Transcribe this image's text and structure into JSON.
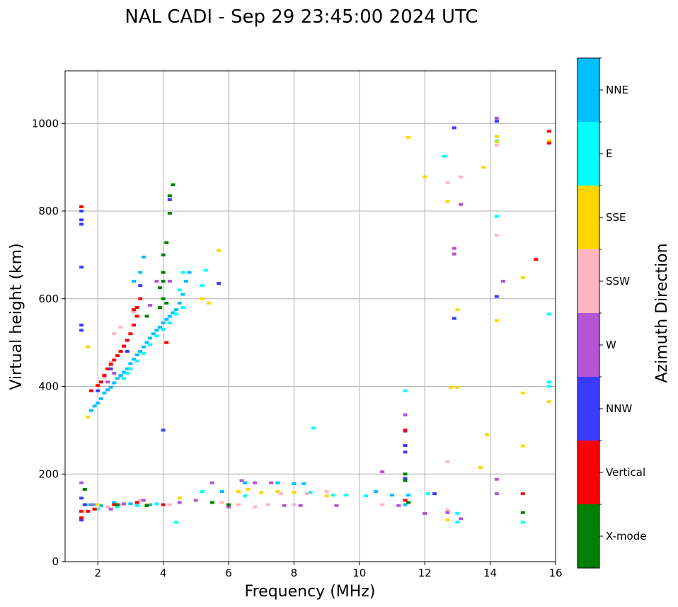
{
  "chart_data": {
    "type": "scatter",
    "title": "NAL CADI - Sep 29 23:45:00 2024 UTC",
    "xlabel": "Frequency (MHz)",
    "ylabel": "Virtual height (km)",
    "xlim": [
      1,
      16
    ],
    "ylim": [
      0,
      1120
    ],
    "xticks": [
      2,
      4,
      6,
      8,
      10,
      12,
      14,
      16
    ],
    "yticks": [
      0,
      200,
      400,
      600,
      800,
      1000
    ],
    "grid": true,
    "colorbar": {
      "label": "Azimuth Direction",
      "categories": [
        {
          "name": "X-mode",
          "color": "#008000"
        },
        {
          "name": "Vertical",
          "color": "#ff0000"
        },
        {
          "name": "NNW",
          "color": "#3b3bff"
        },
        {
          "name": "W",
          "color": "#b455d6"
        },
        {
          "name": "SSW",
          "color": "#ffb6c1"
        },
        {
          "name": "SSE",
          "color": "#ffd700"
        },
        {
          "name": "E",
          "color": "#00ffff"
        },
        {
          "name": "NNE",
          "color": "#00bfff"
        }
      ]
    },
    "series": [
      {
        "name": "NNE",
        "points": [
          [
            1.8,
            345
          ],
          [
            1.9,
            355
          ],
          [
            2.0,
            362
          ],
          [
            2.1,
            372
          ],
          [
            2.2,
            385
          ],
          [
            2.3,
            392
          ],
          [
            2.4,
            398
          ],
          [
            2.5,
            408
          ],
          [
            2.6,
            418
          ],
          [
            2.7,
            425
          ],
          [
            2.8,
            432
          ],
          [
            2.9,
            440
          ],
          [
            3.0,
            452
          ],
          [
            3.1,
            462
          ],
          [
            3.2,
            472
          ],
          [
            3.3,
            480
          ],
          [
            3.4,
            490
          ],
          [
            3.5,
            500
          ],
          [
            3.6,
            510
          ],
          [
            3.7,
            520
          ],
          [
            3.8,
            528
          ],
          [
            3.9,
            535
          ],
          [
            4.0,
            545
          ],
          [
            4.1,
            553
          ],
          [
            4.2,
            560
          ],
          [
            4.3,
            568
          ],
          [
            4.4,
            575
          ],
          [
            4.5,
            590
          ],
          [
            4.6,
            610
          ],
          [
            4.7,
            640
          ],
          [
            4.8,
            660
          ],
          [
            3.3,
            660
          ],
          [
            3.4,
            695
          ],
          [
            3.1,
            640
          ],
          [
            1.9,
            130
          ],
          [
            2.1,
            128
          ],
          [
            2.5,
            135
          ],
          [
            3.0,
            132
          ],
          [
            3.6,
            130
          ],
          [
            5.8,
            160
          ],
          [
            6.5,
            180
          ],
          [
            7.5,
            180
          ],
          [
            8.0,
            178
          ],
          [
            8.3,
            178
          ],
          [
            10.5,
            160
          ],
          [
            11.0,
            152
          ],
          [
            11.5,
            152
          ],
          [
            11.4,
            130
          ]
        ]
      },
      {
        "name": "E",
        "points": [
          [
            2.8,
            418
          ],
          [
            2.9,
            430
          ],
          [
            3.0,
            440
          ],
          [
            3.2,
            458
          ],
          [
            3.4,
            475
          ],
          [
            3.6,
            495
          ],
          [
            3.8,
            515
          ],
          [
            4.0,
            530
          ],
          [
            4.2,
            545
          ],
          [
            4.4,
            565
          ],
          [
            4.6,
            580
          ],
          [
            4.5,
            620
          ],
          [
            4.6,
            660
          ],
          [
            5.2,
            630
          ],
          [
            5.3,
            665
          ],
          [
            1.7,
            130
          ],
          [
            2.0,
            120
          ],
          [
            2.6,
            125
          ],
          [
            3.2,
            128
          ],
          [
            3.8,
            132
          ],
          [
            4.4,
            90
          ],
          [
            5.2,
            160
          ],
          [
            6.5,
            150
          ],
          [
            8.5,
            158
          ],
          [
            8.6,
            305
          ],
          [
            9.2,
            152
          ],
          [
            9.6,
            152
          ],
          [
            10.2,
            150
          ],
          [
            11.4,
            390
          ],
          [
            12.1,
            155
          ],
          [
            12.6,
            925
          ],
          [
            13.0,
            110
          ],
          [
            13.0,
            90
          ],
          [
            14.2,
            788
          ],
          [
            14.2,
            960
          ],
          [
            15.0,
            90
          ],
          [
            15.8,
            400
          ],
          [
            15.8,
            565
          ],
          [
            15.8,
            410
          ]
        ]
      },
      {
        "name": "SSE",
        "points": [
          [
            1.7,
            330
          ],
          [
            1.7,
            490
          ],
          [
            2.0,
            130
          ],
          [
            3.5,
            130
          ],
          [
            4.5,
            145
          ],
          [
            5.4,
            590
          ],
          [
            5.2,
            600
          ],
          [
            5.7,
            710
          ],
          [
            6.3,
            160
          ],
          [
            6.6,
            165
          ],
          [
            7.0,
            158
          ],
          [
            7.5,
            160
          ],
          [
            8.0,
            158
          ],
          [
            9.0,
            150
          ],
          [
            11.5,
            968
          ],
          [
            12.0,
            878
          ],
          [
            12.7,
            822
          ],
          [
            12.7,
            95
          ],
          [
            12.8,
            398
          ],
          [
            13.0,
            575
          ],
          [
            13.0,
            398
          ],
          [
            13.8,
            900
          ],
          [
            13.7,
            215
          ],
          [
            14.2,
            550
          ],
          [
            14.2,
            970
          ],
          [
            14.2,
            958
          ],
          [
            15.0,
            648
          ],
          [
            15.0,
            385
          ],
          [
            15.0,
            264
          ],
          [
            15.8,
            365
          ],
          [
            15.8,
            960
          ],
          [
            13.9,
            290
          ]
        ]
      },
      {
        "name": "SSW",
        "points": [
          [
            2.2,
            420
          ],
          [
            2.4,
            455
          ],
          [
            2.5,
            520
          ],
          [
            2.7,
            535
          ],
          [
            2.8,
            490
          ],
          [
            3.1,
            570
          ],
          [
            4.0,
            660
          ],
          [
            2.3,
            125
          ],
          [
            2.7,
            130
          ],
          [
            3.3,
            140
          ],
          [
            4.2,
            130
          ],
          [
            5.8,
            135
          ],
          [
            6.3,
            130
          ],
          [
            6.8,
            125
          ],
          [
            7.2,
            130
          ],
          [
            7.6,
            155
          ],
          [
            8.0,
            130
          ],
          [
            8.4,
            155
          ],
          [
            9.0,
            160
          ],
          [
            10.7,
            130
          ],
          [
            12.7,
            865
          ],
          [
            12.7,
            228
          ],
          [
            13.1,
            878
          ],
          [
            12.7,
            118
          ],
          [
            14.2,
            745
          ],
          [
            14.2,
            950
          ]
        ]
      },
      {
        "name": "W",
        "points": [
          [
            1.5,
            180
          ],
          [
            1.8,
            130
          ],
          [
            2.3,
            410
          ],
          [
            2.5,
            430
          ],
          [
            3.6,
            585
          ],
          [
            3.8,
            640
          ],
          [
            4.2,
            640
          ],
          [
            2.4,
            120
          ],
          [
            2.8,
            132
          ],
          [
            3.4,
            140
          ],
          [
            4.5,
            135
          ],
          [
            5.0,
            140
          ],
          [
            5.5,
            180
          ],
          [
            6.0,
            125
          ],
          [
            6.4,
            185
          ],
          [
            6.8,
            180
          ],
          [
            7.3,
            180
          ],
          [
            7.7,
            128
          ],
          [
            8.2,
            128
          ],
          [
            9.3,
            128
          ],
          [
            10.7,
            205
          ],
          [
            11.2,
            128
          ],
          [
            11.4,
            335
          ],
          [
            11.4,
            300
          ],
          [
            12.0,
            110
          ],
          [
            12.7,
            112
          ],
          [
            12.9,
            715
          ],
          [
            12.9,
            702
          ],
          [
            13.1,
            815
          ],
          [
            13.1,
            98
          ],
          [
            14.2,
            1012
          ],
          [
            14.2,
            188
          ],
          [
            14.2,
            155
          ],
          [
            14.4,
            640
          ]
        ]
      },
      {
        "name": "NNW",
        "points": [
          [
            1.5,
            800
          ],
          [
            1.5,
            780
          ],
          [
            1.5,
            770
          ],
          [
            1.5,
            672
          ],
          [
            1.5,
            540
          ],
          [
            1.5,
            528
          ],
          [
            1.5,
            145
          ],
          [
            1.5,
            95
          ],
          [
            1.6,
            130
          ],
          [
            2.0,
            390
          ],
          [
            2.4,
            440
          ],
          [
            2.9,
            480
          ],
          [
            3.3,
            630
          ],
          [
            4.0,
            300
          ],
          [
            4.2,
            826
          ],
          [
            5.7,
            635
          ],
          [
            11.4,
            298
          ],
          [
            11.4,
            265
          ],
          [
            11.4,
            250
          ],
          [
            11.4,
            190
          ],
          [
            12.3,
            155
          ],
          [
            12.9,
            990
          ],
          [
            12.9,
            555
          ],
          [
            14.2,
            1005
          ],
          [
            14.2,
            605
          ]
        ]
      },
      {
        "name": "Vertical",
        "points": [
          [
            1.5,
            115
          ],
          [
            1.5,
            100
          ],
          [
            1.5,
            810
          ],
          [
            1.8,
            390
          ],
          [
            2.0,
            402
          ],
          [
            2.1,
            410
          ],
          [
            2.2,
            425
          ],
          [
            2.3,
            440
          ],
          [
            2.4,
            450
          ],
          [
            2.5,
            460
          ],
          [
            2.6,
            470
          ],
          [
            2.7,
            480
          ],
          [
            2.8,
            492
          ],
          [
            2.9,
            505
          ],
          [
            3.0,
            520
          ],
          [
            3.1,
            540
          ],
          [
            3.2,
            560
          ],
          [
            3.2,
            580
          ],
          [
            3.3,
            600
          ],
          [
            3.1,
            575
          ],
          [
            4.1,
            500
          ],
          [
            1.7,
            115
          ],
          [
            1.9,
            120
          ],
          [
            2.5,
            130
          ],
          [
            3.2,
            135
          ],
          [
            4.0,
            130
          ],
          [
            11.4,
            140
          ],
          [
            11.4,
            300
          ],
          [
            15.0,
            155
          ],
          [
            15.4,
            690
          ],
          [
            15.8,
            982
          ],
          [
            15.8,
            955
          ]
        ]
      },
      {
        "name": "X-mode",
        "points": [
          [
            3.5,
            560
          ],
          [
            3.9,
            580
          ],
          [
            3.9,
            625
          ],
          [
            4.0,
            640
          ],
          [
            4.0,
            660
          ],
          [
            4.0,
            700
          ],
          [
            4.1,
            728
          ],
          [
            4.2,
            795
          ],
          [
            4.2,
            835
          ],
          [
            4.3,
            860
          ],
          [
            4.1,
            590
          ],
          [
            4.0,
            600
          ],
          [
            1.6,
            165
          ],
          [
            2.6,
            130
          ],
          [
            3.5,
            128
          ],
          [
            5.5,
            135
          ],
          [
            6.0,
            130
          ],
          [
            11.4,
            200
          ],
          [
            11.4,
            185
          ],
          [
            11.5,
            135
          ],
          [
            15.0,
            112
          ]
        ]
      }
    ]
  }
}
